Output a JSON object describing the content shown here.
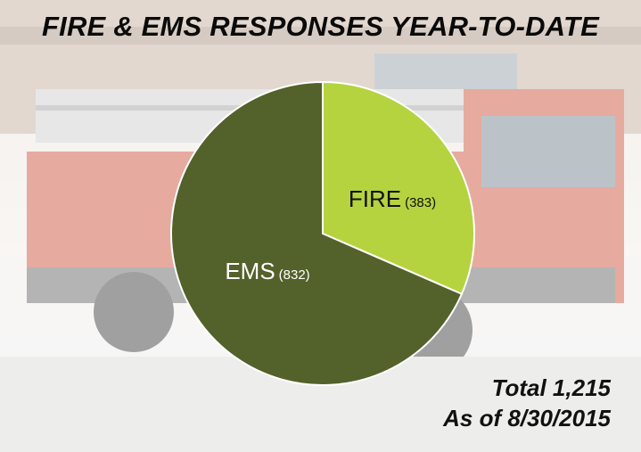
{
  "chart_data": {
    "type": "pie",
    "title": "FIRE & EMS RESPONSES YEAR-TO-DATE",
    "slices": [
      {
        "label": "FIRE",
        "value": 383,
        "value_text": "(383)",
        "color": "#b5d33f"
      },
      {
        "label": "EMS",
        "value": 832,
        "value_text": "(832)",
        "color": "#53612a"
      }
    ],
    "start": "12 o'clock",
    "direction": "clockwise",
    "label_placement": "inside slices"
  },
  "notes": {
    "total": "Total 1,215",
    "as_of": "As of 8/30/2015"
  },
  "colors": {
    "title": "#0a0a0a",
    "slice_border": "#ffffff",
    "label_text_on_fire": "#111111",
    "label_text_on_ems": "#ffffff"
  }
}
